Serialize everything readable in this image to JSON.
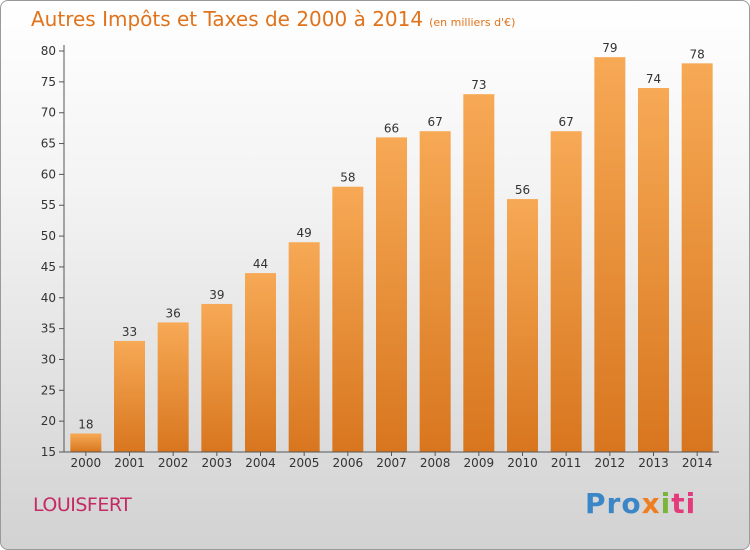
{
  "header": {
    "title": "Autres Impôts et Taxes de 2000 à 2014",
    "subtitle": "(en milliers d'€)"
  },
  "footer": {
    "place": "LOUISFERT",
    "brand": [
      "Pro",
      "x",
      "i",
      "ti"
    ]
  },
  "colors": {
    "title": "#e0731b",
    "bar_light": "#f7a955",
    "bar_dark": "#d8761f",
    "place": "#c42a63"
  },
  "chart_data": {
    "type": "bar",
    "categories": [
      "2000",
      "2001",
      "2002",
      "2003",
      "2004",
      "2005",
      "2006",
      "2007",
      "2008",
      "2009",
      "2010",
      "2011",
      "2012",
      "2013",
      "2014"
    ],
    "values": [
      18,
      33,
      36,
      39,
      44,
      49,
      58,
      66,
      67,
      73,
      56,
      67,
      79,
      74,
      78
    ],
    "ylim": [
      15,
      80
    ],
    "yticks": [
      15,
      20,
      25,
      30,
      35,
      40,
      45,
      50,
      55,
      60,
      65,
      70,
      75,
      80
    ],
    "grid": false,
    "legend": "none"
  }
}
